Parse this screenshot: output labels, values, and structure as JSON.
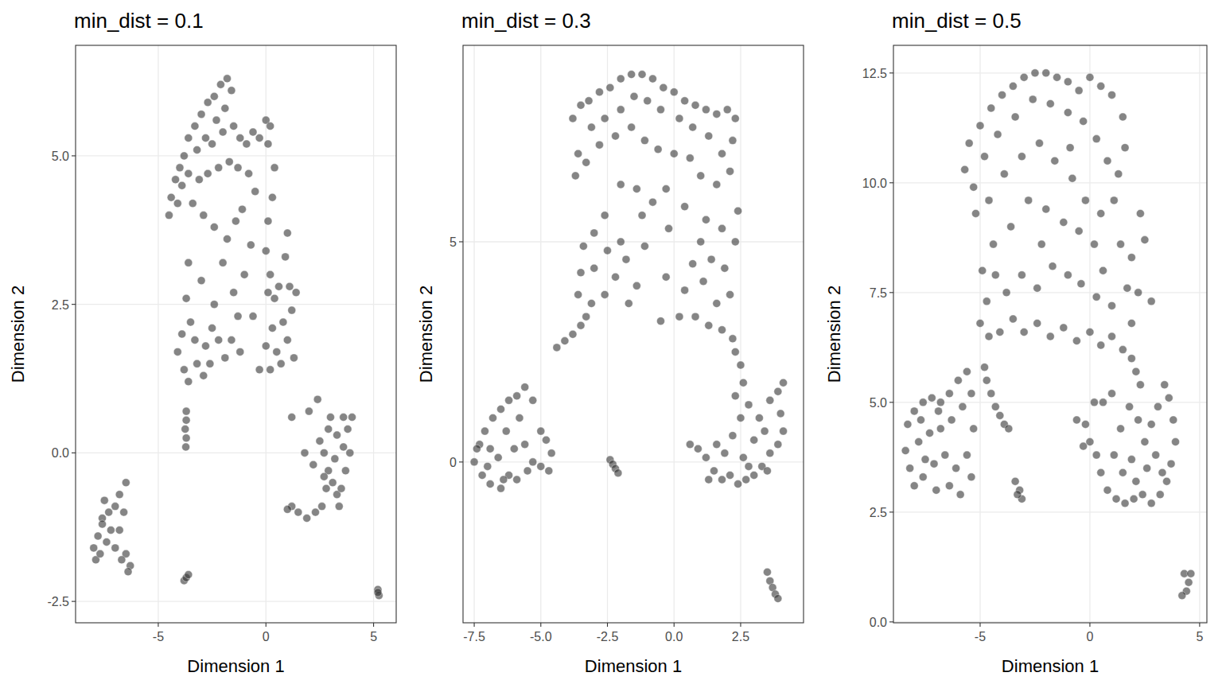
{
  "chart_data": [
    {
      "type": "scatter",
      "title": "min_dist = 0.1",
      "x_label": "Dimension 1",
      "y_label": "Dimension 2",
      "color": "#333333",
      "grid": true,
      "xlim": [
        -8.84,
        6.05
      ],
      "ylim": [
        -2.86,
        6.86
      ],
      "xticks": [
        -5,
        0,
        5
      ],
      "yticks": [
        -2.5,
        {
          "value": 0,
          "label": "0.0"
        },
        2.5,
        {
          "value": 5,
          "label": "5.0"
        }
      ],
      "x": [
        -4.5,
        -4.4,
        -4.2,
        -4.0,
        -3.8,
        -3.6,
        -3.3,
        -3.0,
        -2.7,
        -2.4,
        -2.1,
        -1.8,
        -1.6,
        -1.9,
        -2.3,
        -2.8,
        -3.2,
        -3.6,
        -4.1,
        -3.9,
        -2.5,
        -2.0,
        -1.5,
        -1.2,
        -0.9,
        -0.6,
        -0.3,
        0.0,
        0.2,
        0.1,
        -1.7,
        -2.2,
        -2.7,
        -3.1,
        -1.3,
        -0.8,
        -3.4,
        -2.9,
        -2.4,
        -1.8,
        -1.1,
        -0.5,
        0.4,
        0.3,
        0.1,
        0.0,
        0.2,
        0.1,
        0.4,
        0.6,
        1.0,
        0.9,
        1.1,
        1.2,
        1.4,
        0.8,
        0.3,
        0.0,
        0.5,
        1.0,
        1.3,
        0.7,
        -0.3,
        0.2,
        -3.7,
        -3.5,
        -3.9,
        -4.1,
        -3.8,
        -3.6,
        -3.2,
        -2.8,
        -2.5,
        -2.2,
        -1.9,
        -1.6,
        -1.2,
        -2.9,
        -3.3,
        -2.4,
        -1.5,
        -1.0,
        -2.0,
        -3.0,
        -0.6,
        -3.6,
        -1.4,
        -0.7,
        -2.6,
        -1.3,
        -3.7,
        -3.7,
        -3.75,
        -3.7,
        -3.72,
        -8.0,
        -7.9,
        -7.8,
        -7.6,
        -7.5,
        -7.3,
        -7.4,
        -7.7,
        -7.2,
        -7.0,
        -6.8,
        -6.5,
        -6.6,
        -6.8,
        -7.0,
        -6.5,
        -6.3,
        -6.4,
        -6.7,
        -7.6,
        -3.8,
        -3.7,
        -3.6,
        1.2,
        1.5,
        1.9,
        2.3,
        2.6,
        2.8,
        2.9,
        3.1,
        3.3,
        3.5,
        3.2,
        2.7,
        2.5,
        2.9,
        3.3,
        3.6,
        3.8,
        4.0,
        3.6,
        3.0,
        2.4,
        2.2,
        1.8,
        1.2,
        3.7,
        3.9,
        2.0,
        3.4,
        2.7,
        1.0,
        5.2,
        5.25,
        5.2
      ],
      "values": [
        4.0,
        4.3,
        4.6,
        4.8,
        5.0,
        5.3,
        5.5,
        5.7,
        5.9,
        6.0,
        6.2,
        6.3,
        6.1,
        5.8,
        5.6,
        5.3,
        5.1,
        4.7,
        4.2,
        4.5,
        5.2,
        5.4,
        5.5,
        5.3,
        5.2,
        5.4,
        5.3,
        5.6,
        5.5,
        5.2,
        4.9,
        4.8,
        4.7,
        4.6,
        4.8,
        4.7,
        4.2,
        4.0,
        3.8,
        3.6,
        4.1,
        4.4,
        4.8,
        4.3,
        3.9,
        3.4,
        3.0,
        2.7,
        2.6,
        2.8,
        3.7,
        3.3,
        2.8,
        2.4,
        2.7,
        2.2,
        2.1,
        1.8,
        1.7,
        1.9,
        1.6,
        1.5,
        1.4,
        1.4,
        2.6,
        2.2,
        2.0,
        1.7,
        1.4,
        1.2,
        1.5,
        1.8,
        2.1,
        1.9,
        1.6,
        1.9,
        1.7,
        1.3,
        1.9,
        2.5,
        2.7,
        3.0,
        3.2,
        2.9,
        2.3,
        3.2,
        3.9,
        3.5,
        1.5,
        2.3,
        0.7,
        0.55,
        0.4,
        0.25,
        0.1,
        -1.6,
        -1.8,
        -1.4,
        -1.1,
        -0.8,
        -1.0,
        -1.5,
        -1.7,
        -1.3,
        -0.9,
        -0.7,
        -0.5,
        -1.0,
        -1.3,
        -1.6,
        -1.7,
        -1.9,
        -2.0,
        -1.8,
        -1.2,
        -2.15,
        -2.1,
        -2.05,
        -0.9,
        -1.0,
        -1.1,
        -1.0,
        -0.9,
        -0.6,
        -0.3,
        -0.5,
        -0.7,
        -0.6,
        -0.1,
        0.0,
        0.2,
        0.4,
        0.3,
        0.1,
        0.4,
        0.6,
        0.6,
        0.6,
        0.9,
        -0.2,
        0.0,
        0.6,
        -0.3,
        0.0,
        0.7,
        -0.9,
        -0.4,
        -0.95,
        -2.3,
        -2.4,
        -2.35
      ]
    },
    {
      "type": "scatter",
      "title": "min_dist = 0.3",
      "x_label": "Dimension 1",
      "y_label": "Dimension 2",
      "color": "#333333",
      "grid": true,
      "xlim": [
        -7.92,
        4.86
      ],
      "ylim": [
        -3.65,
        9.46
      ],
      "xticks": [
        -7.5,
        {
          "value": -5,
          "label": "-5.0"
        },
        -2.5,
        {
          "value": 0,
          "label": "0.0"
        },
        2.5
      ],
      "yticks": [
        0,
        5
      ],
      "x": [
        -3.8,
        -3.5,
        -3.2,
        -2.8,
        -2.4,
        -2.0,
        -1.6,
        -1.2,
        -0.8,
        -0.4,
        0.0,
        0.4,
        0.8,
        1.2,
        1.6,
        2.0,
        2.3,
        2.2,
        1.8,
        1.3,
        0.7,
        0.2,
        -0.5,
        -1.0,
        -1.5,
        -2.0,
        -2.6,
        -3.1,
        -3.6,
        -3.7,
        -3.3,
        -2.8,
        -2.2,
        -1.6,
        -1.1,
        -0.6,
        0.0,
        0.6,
        1.0,
        1.6,
        2.1,
        2.4,
        2.3,
        1.8,
        1.2,
        1.0,
        1.4,
        1.9,
        2.1,
        1.6,
        1.1,
        0.7,
        0.4,
        0.8,
        1.3,
        1.8,
        2.2,
        0.2,
        -0.3,
        -0.2,
        -0.8,
        -1.4,
        -2.0,
        -2.6,
        -3.0,
        -3.4,
        -3.5,
        -3.6,
        -3.1,
        -2.6,
        -2.2,
        -1.7,
        -1.4,
        -1.8,
        -2.5,
        -3.0,
        -2.0,
        -1.1,
        -0.5,
        -1.2,
        -4.4,
        -4.1,
        -3.8,
        -3.5,
        -3.3,
        2.5,
        2.6,
        2.3,
        -0.3,
        0.4,
        -7.5,
        -7.3,
        -7.1,
        -6.8,
        -6.5,
        -6.2,
        -5.9,
        -5.6,
        -5.3,
        -5.8,
        -6.3,
        -6.9,
        -7.2,
        -6.9,
        -6.5,
        -6.2,
        -6.6,
        -6.0,
        -5.6,
        -5.3,
        -5.0,
        -4.7,
        -4.6,
        -5.0,
        -4.8,
        -5.5,
        -6.4,
        -7.0,
        -7.4,
        -5.9,
        -2.4,
        -2.3,
        -2.2,
        -2.1,
        0.6,
        0.9,
        1.2,
        1.5,
        1.8,
        2.1,
        2.4,
        2.7,
        3.0,
        3.3,
        3.6,
        3.9,
        4.1,
        4.0,
        3.9,
        4.1,
        3.6,
        3.2,
        2.8,
        2.5,
        2.2,
        1.9,
        2.6,
        3.0,
        3.4,
        2.3,
        1.6,
        2.8,
        3.5,
        1.3,
        3.5,
        3.6,
        3.7,
        3.8,
        3.9
      ],
      "values": [
        7.8,
        8.1,
        8.2,
        8.4,
        8.5,
        8.7,
        8.8,
        8.8,
        8.7,
        8.5,
        8.4,
        8.2,
        8.1,
        8.0,
        7.9,
        8.0,
        7.8,
        7.3,
        7.0,
        7.4,
        7.6,
        7.8,
        8.0,
        8.2,
        8.3,
        8.0,
        7.8,
        7.6,
        7.0,
        6.5,
        6.8,
        7.2,
        7.4,
        7.6,
        7.3,
        7.1,
        7.0,
        6.9,
        6.5,
        6.3,
        6.6,
        5.7,
        5.0,
        5.3,
        5.5,
        5.0,
        4.6,
        4.4,
        3.8,
        3.6,
        4.1,
        4.5,
        3.9,
        3.3,
        3.1,
        3.0,
        2.8,
        3.3,
        4.2,
        5.3,
        5.9,
        6.2,
        6.3,
        5.6,
        5.2,
        4.9,
        4.3,
        3.8,
        3.6,
        3.8,
        4.2,
        3.6,
        4.0,
        4.6,
        4.8,
        4.4,
        5.0,
        4.9,
        3.2,
        5.6,
        2.6,
        2.75,
        2.9,
        3.1,
        3.3,
        2.2,
        1.8,
        2.5,
        6.2,
        5.8,
        0.0,
        0.4,
        0.7,
        1.0,
        1.2,
        1.4,
        1.5,
        1.7,
        1.4,
        1.0,
        0.7,
        0.3,
        -0.3,
        -0.5,
        -0.6,
        -0.3,
        0.1,
        0.3,
        0.4,
        0.0,
        -0.1,
        -0.2,
        0.2,
        0.7,
        0.5,
        -0.2,
        -0.4,
        -0.1,
        0.3,
        -0.4,
        0.05,
        -0.05,
        -0.15,
        -0.25,
        0.4,
        0.3,
        0.1,
        -0.2,
        -0.4,
        -0.3,
        -0.5,
        -0.4,
        -0.3,
        -0.1,
        0.2,
        0.4,
        0.7,
        1.1,
        1.6,
        1.8,
        1.4,
        1.0,
        1.3,
        1.0,
        0.6,
        0.2,
        0.1,
        0.5,
        0.7,
        1.5,
        0.4,
        -0.1,
        -0.2,
        -0.4,
        -2.5,
        -2.7,
        -2.85,
        -3.0,
        -3.1
      ]
    },
    {
      "type": "scatter",
      "title": "min_dist = 0.5",
      "x_label": "Dimension 1",
      "y_label": "Dimension 2",
      "color": "#333333",
      "grid": true,
      "xlim": [
        -8.95,
        5.33
      ],
      "ylim": [
        -0.02,
        13.13
      ],
      "xticks": [
        -5,
        0,
        5
      ],
      "yticks": [
        {
          "value": 0,
          "label": "0.0"
        },
        2.5,
        {
          "value": 5,
          "label": "5.0"
        },
        7.5,
        {
          "value": 10,
          "label": "10.0"
        },
        12.5
      ],
      "x": [
        -5.7,
        -5.5,
        -5.0,
        -4.5,
        -4.0,
        -3.5,
        -3.0,
        -2.5,
        -2.0,
        -1.5,
        -1.0,
        -0.5,
        0.0,
        0.5,
        1.0,
        1.5,
        1.6,
        1.3,
        0.8,
        0.3,
        -0.3,
        -1.0,
        -1.8,
        -2.6,
        -3.4,
        -4.2,
        -4.8,
        -5.3,
        -5.2,
        -4.6,
        -3.9,
        -3.1,
        -2.3,
        -1.6,
        -0.8,
        -0.2,
        0.5,
        1.1,
        2.3,
        2.5,
        1.9,
        1.4,
        0.6,
        0.2,
        -0.5,
        -1.2,
        -2.0,
        -2.8,
        -3.6,
        -4.4,
        -4.9,
        -4.7,
        -5.0,
        -4.6,
        -4.1,
        -3.5,
        -3.0,
        -2.4,
        -1.8,
        -1.2,
        -0.6,
        0.0,
        0.5,
        1.0,
        1.5,
        1.9,
        2.2,
        2.8,
        1.7,
        1.0,
        0.3,
        -0.4,
        -1.0,
        -1.7,
        -2.4,
        -3.1,
        -3.8,
        -4.3,
        -2.2,
        -0.9,
        1.9,
        2.1,
        2.3,
        -8.4,
        -8.3,
        -8.0,
        -7.6,
        -7.2,
        -6.8,
        -6.4,
        -6.0,
        -5.6,
        -5.4,
        -5.8,
        -6.3,
        -6.8,
        -7.3,
        -7.8,
        -8.2,
        -8.0,
        -7.6,
        -7.1,
        -6.6,
        -6.1,
        -5.6,
        -5.4,
        -5.9,
        -6.4,
        -7.0,
        -7.5,
        -6.9,
        -7.7,
        -5.3,
        -4.8,
        -4.7,
        -4.5,
        -4.3,
        -4.1,
        -3.9,
        -3.7,
        -3.4,
        -3.2,
        -3.1,
        -3.3,
        -0.6,
        -0.2,
        0.0,
        -0.3,
        0.3,
        0.5,
        0.8,
        1.2,
        1.6,
        2.0,
        2.4,
        2.8,
        3.2,
        3.5,
        3.7,
        3.9,
        3.8,
        3.6,
        3.4,
        3.1,
        2.8,
        2.5,
        2.2,
        1.8,
        1.4,
        1.1,
        1.5,
        1.9,
        2.6,
        3.0,
        0.6,
        0.2,
        1.0,
        3.3,
        2.1,
        4.3,
        4.5,
        4.6,
        4.4,
        4.2
      ],
      "values": [
        10.3,
        10.9,
        11.3,
        11.7,
        12.0,
        12.2,
        12.4,
        12.5,
        12.5,
        12.4,
        12.3,
        12.1,
        12.4,
        12.2,
        12.0,
        11.5,
        10.8,
        10.2,
        10.5,
        11.0,
        11.4,
        11.6,
        11.8,
        11.9,
        11.5,
        11.1,
        10.6,
        9.9,
        9.3,
        9.6,
        10.2,
        10.6,
        10.9,
        10.5,
        10.1,
        9.6,
        9.3,
        9.6,
        9.3,
        8.7,
        8.3,
        8.6,
        8.0,
        8.6,
        8.9,
        9.1,
        9.4,
        9.6,
        9.0,
        8.6,
        8.0,
        7.3,
        6.8,
        6.5,
        6.6,
        6.9,
        6.6,
        6.8,
        6.5,
        6.7,
        6.4,
        6.6,
        6.3,
        6.5,
        6.2,
        6.8,
        7.5,
        7.3,
        7.6,
        7.2,
        7.4,
        7.7,
        7.9,
        8.1,
        7.6,
        7.9,
        7.5,
        7.9,
        8.6,
        10.8,
        6.0,
        5.7,
        5.4,
        3.9,
        4.5,
        4.8,
        5.0,
        5.1,
        5.0,
        5.2,
        5.5,
        5.7,
        5.2,
        4.9,
        4.6,
        4.4,
        4.3,
        4.1,
        3.5,
        3.1,
        3.3,
        3.6,
        3.8,
        3.5,
        3.8,
        3.3,
        2.9,
        3.1,
        3.0,
        3.7,
        4.8,
        4.6,
        4.4,
        5.8,
        5.5,
        5.2,
        4.9,
        4.7,
        4.5,
        4.4,
        3.2,
        3.0,
        2.8,
        2.9,
        4.6,
        4.5,
        4.1,
        4.0,
        3.8,
        3.4,
        3.0,
        2.8,
        2.7,
        2.8,
        2.9,
        2.7,
        2.9,
        3.2,
        3.6,
        4.1,
        4.6,
        5.1,
        5.4,
        4.9,
        4.5,
        4.1,
        4.6,
        4.9,
        4.4,
        3.8,
        3.4,
        3.7,
        3.5,
        3.8,
        5.0,
        5.0,
        5.2,
        3.4,
        3.2,
        1.1,
        0.9,
        1.1,
        0.7,
        0.6
      ]
    }
  ]
}
